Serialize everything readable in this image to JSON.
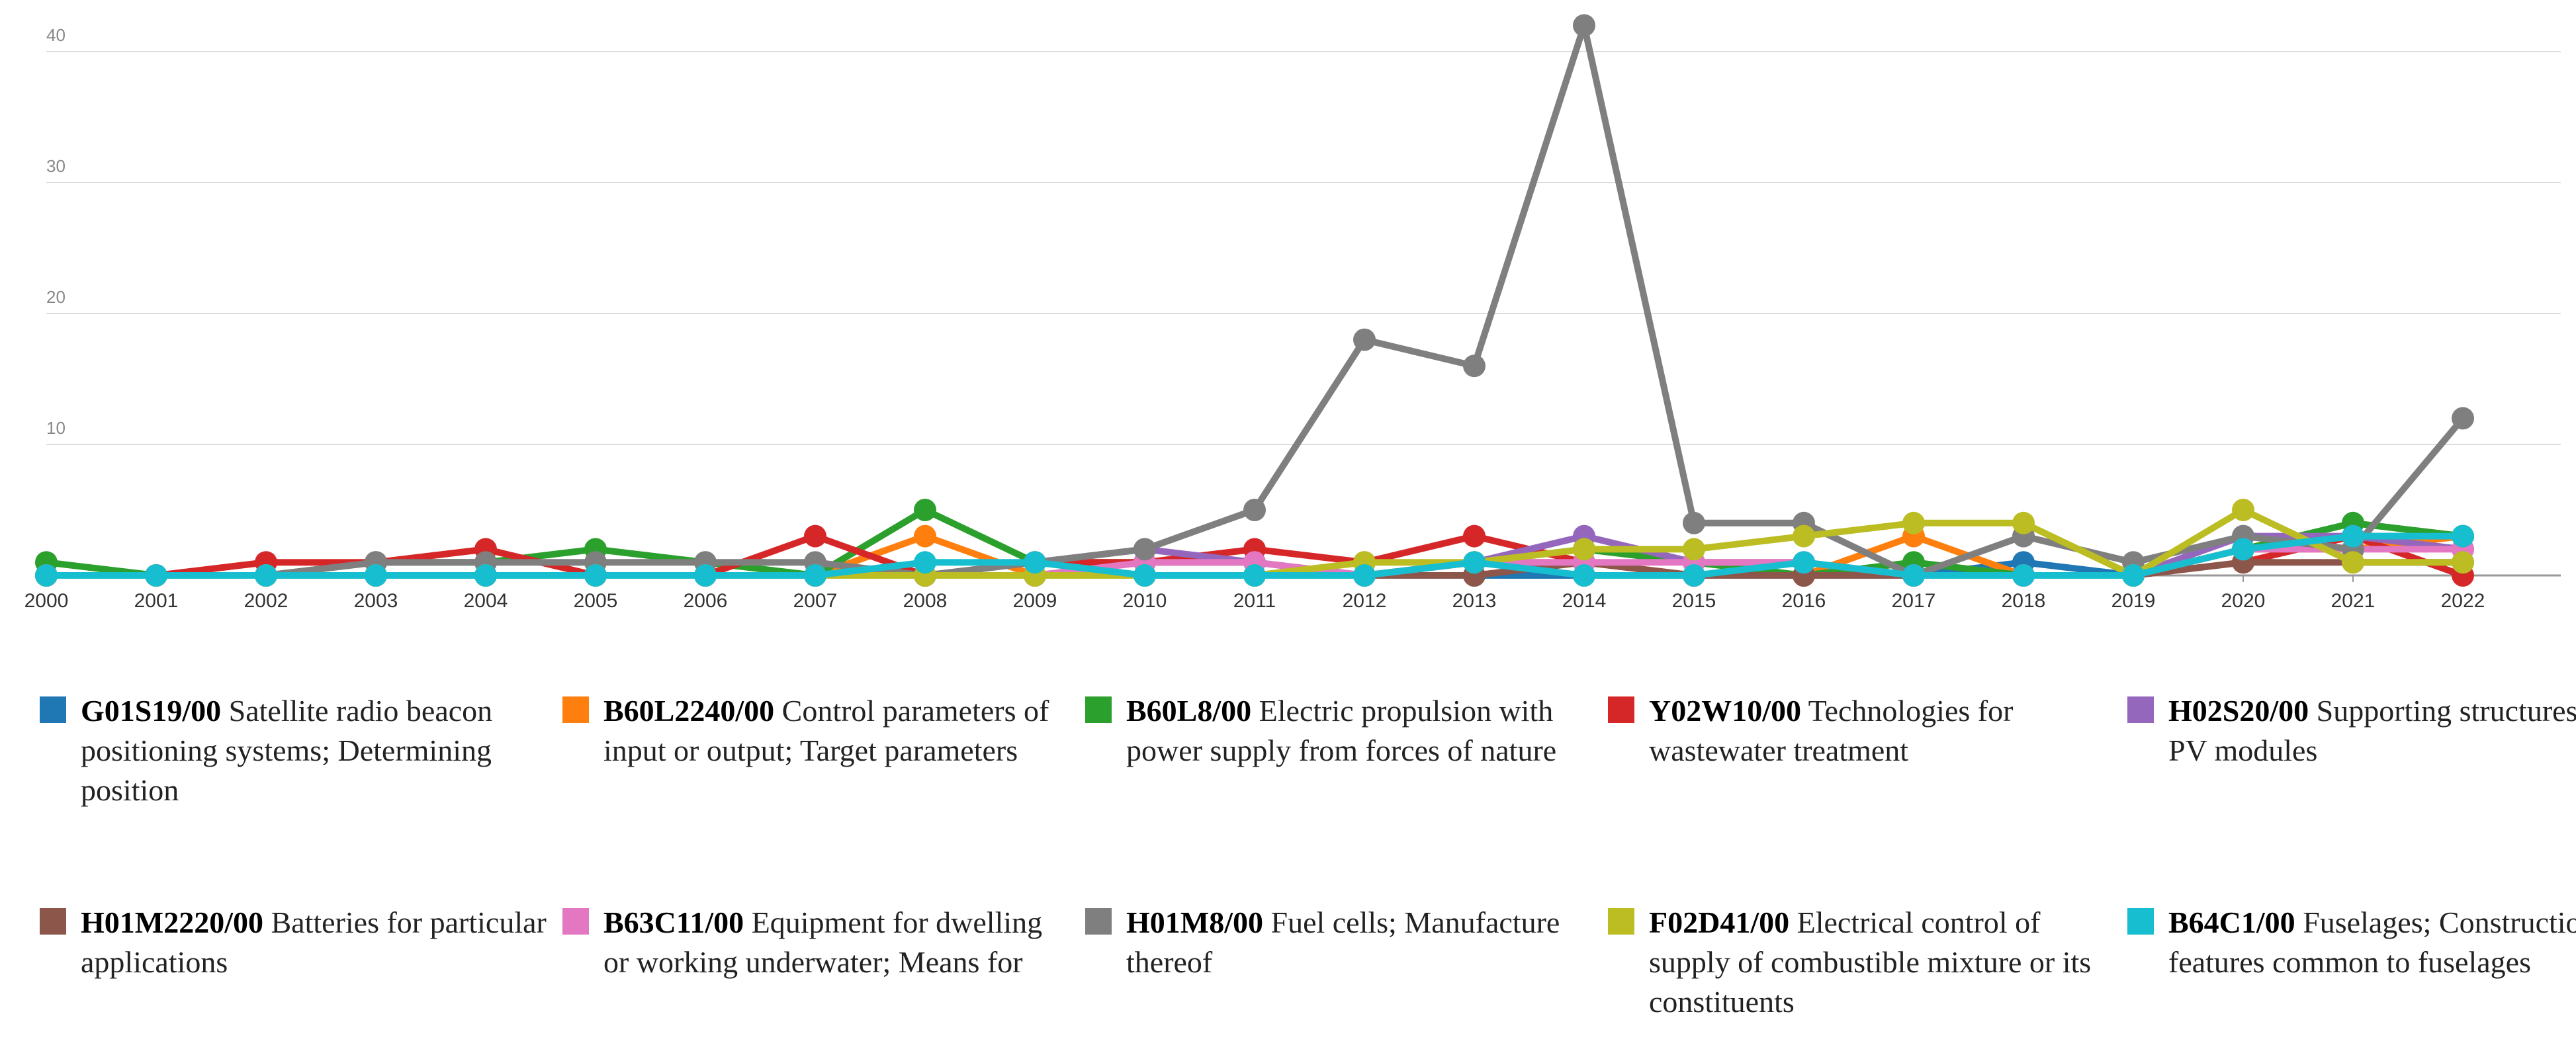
{
  "chart_data": {
    "type": "line",
    "title": "",
    "xlabel": "",
    "ylabel": "",
    "ylim": [
      0,
      42
    ],
    "y_ticks": [
      "0",
      "10",
      "20",
      "30",
      "40"
    ],
    "categories": [
      "2000",
      "2001",
      "2002",
      "2003",
      "2004",
      "2005",
      "2006",
      "2007",
      "2008",
      "2009",
      "2010",
      "2011",
      "2012",
      "2013",
      "2014",
      "2015",
      "2016",
      "2017",
      "2018",
      "2019",
      "2020",
      "2021",
      "2022"
    ],
    "grid": true,
    "legend_position": "bottom",
    "series": [
      {
        "name": "G01S19/00",
        "code": "G01S19/00",
        "desc": "Satellite radio beacon positioning systems; Determining position",
        "color": "#1f77b4",
        "values": [
          0,
          0,
          0,
          0,
          0,
          0,
          0,
          0,
          0,
          0,
          0,
          0,
          0,
          0,
          0,
          0,
          0,
          0,
          1,
          0,
          2,
          3,
          3
        ]
      },
      {
        "name": "B60L2240/00",
        "code": "B60L2240/00",
        "desc": "Control parameters of input or output; Target parameters",
        "color": "#ff7f0e",
        "values": [
          0,
          0,
          0,
          0,
          0,
          0,
          0,
          0,
          3,
          0,
          0,
          0,
          0,
          1,
          1,
          0,
          0,
          3,
          0,
          0,
          2,
          2,
          3
        ]
      },
      {
        "name": "B60L8/00",
        "code": "B60L8/00",
        "desc": "Electric propulsion with power supply from forces of nature",
        "color": "#2ca02c",
        "values": [
          1,
          0,
          0,
          1,
          1,
          2,
          1,
          0,
          5,
          1,
          1,
          1,
          0,
          1,
          2,
          1,
          0,
          1,
          0,
          0,
          2,
          4,
          3
        ]
      },
      {
        "name": "Y02W10/00",
        "code": "Y02W10/00",
        "desc": "Technologies for wastewater treatment",
        "color": "#d62728",
        "values": [
          0,
          0,
          1,
          1,
          2,
          0,
          0,
          3,
          0,
          1,
          1,
          2,
          1,
          3,
          1,
          0,
          0,
          0,
          0,
          0,
          1,
          3,
          0
        ]
      },
      {
        "name": "H02S20/00",
        "code": "H02S20/00",
        "desc": "Supporting structures for PV modules",
        "color": "#9467bd",
        "values": [
          0,
          0,
          0,
          0,
          0,
          0,
          0,
          0,
          0,
          1,
          2,
          1,
          0,
          1,
          3,
          1,
          1,
          0,
          0,
          0,
          3,
          3,
          2
        ]
      },
      {
        "name": "H01M2220/00",
        "code": "H01M2220/00",
        "desc": "Batteries for particular applications",
        "color": "#8c564b",
        "values": [
          0,
          0,
          0,
          0,
          0,
          0,
          0,
          0,
          0,
          0,
          0,
          0,
          0,
          0,
          1,
          0,
          0,
          0,
          0,
          0,
          1,
          1,
          1
        ]
      },
      {
        "name": "B63C11/00",
        "code": "B63C11/00",
        "desc": "Equipment for dwelling or working underwater; Means for",
        "color": "#e377c2",
        "values": [
          0,
          0,
          0,
          0,
          0,
          0,
          0,
          0,
          0,
          0,
          1,
          1,
          0,
          1,
          1,
          1,
          1,
          0,
          0,
          0,
          2,
          2,
          2
        ]
      },
      {
        "name": "H01M8/00",
        "code": "H01M8/00",
        "desc": "Fuel cells; Manufacture thereof",
        "color": "#7f7f7f",
        "values": [
          0,
          0,
          0,
          1,
          1,
          1,
          1,
          1,
          0,
          1,
          2,
          5,
          18,
          16,
          42,
          4,
          4,
          0,
          3,
          1,
          3,
          2,
          12
        ]
      },
      {
        "name": "F02D41/00",
        "code": "F02D41/00",
        "desc": "Electrical control of supply of combustible mixture or its constituents",
        "color": "#bcbd22",
        "values": [
          0,
          0,
          0,
          0,
          0,
          0,
          0,
          0,
          0,
          0,
          0,
          0,
          1,
          1,
          2,
          2,
          3,
          4,
          4,
          0,
          5,
          1,
          1
        ]
      },
      {
        "name": "B64C1/00",
        "code": "B64C1/00",
        "desc": "Fuselages; Constructional features common to fuselages",
        "color": "#17becf",
        "values": [
          0,
          0,
          0,
          0,
          0,
          0,
          0,
          0,
          1,
          1,
          0,
          0,
          0,
          1,
          0,
          0,
          1,
          0,
          0,
          0,
          2,
          3,
          3
        ]
      }
    ]
  }
}
